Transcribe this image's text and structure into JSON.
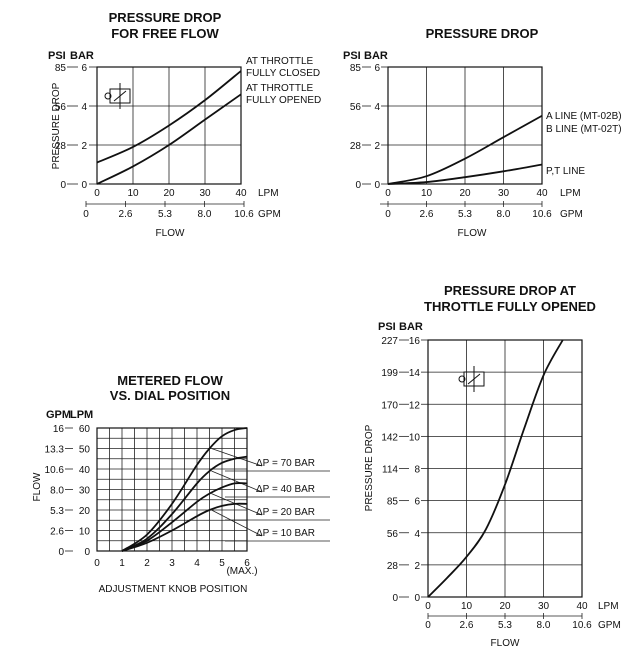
{
  "chart_data": [
    {
      "type": "line",
      "title": [
        "PRESSURE DROP",
        "FOR FREE FLOW"
      ],
      "ylabel": "PRESSURE DROP",
      "y_units": [
        "PSI",
        "BAR"
      ],
      "y_ticks_psi": [
        "85",
        "56",
        "28",
        "0"
      ],
      "y_ticks_bar": [
        "6",
        "4",
        "2",
        "0"
      ],
      "ylim": [
        0,
        6
      ],
      "xlim": [
        0,
        40
      ],
      "x_unit_lpm": "LPM",
      "x_unit_gpm": "GPM",
      "x_ticks_lpm": [
        "0",
        "10",
        "20",
        "30",
        "40"
      ],
      "x_ticks_gpm": [
        "0",
        "2.6",
        "5.3",
        "8.0",
        "10.6"
      ],
      "xlabel": "FLOW",
      "grid": true,
      "series": [
        {
          "name": "AT THROTTLE FULLY CLOSED",
          "label_lines": [
            "AT THROTTLE",
            "FULLY CLOSED"
          ],
          "x": [
            0,
            10,
            20,
            30,
            40
          ],
          "y": [
            1.1,
            1.9,
            3.0,
            4.3,
            5.8
          ]
        },
        {
          "name": "AT THROTTLE FULLY OPENED",
          "label_lines": [
            "AT THROTTLE",
            "FULLY OPENED"
          ],
          "x": [
            0,
            10,
            20,
            30,
            40
          ],
          "y": [
            0.0,
            0.9,
            2.0,
            3.3,
            4.6
          ]
        }
      ]
    },
    {
      "type": "line",
      "title": [
        "PRESSURE DROP"
      ],
      "y_units": [
        "PSI",
        "BAR"
      ],
      "y_ticks_psi": [
        "85",
        "56",
        "28",
        "0"
      ],
      "y_ticks_bar": [
        "6",
        "4",
        "2",
        "0"
      ],
      "ylim": [
        0,
        6
      ],
      "xlim": [
        0,
        40
      ],
      "x_unit_lpm": "LPM",
      "x_unit_gpm": "GPM",
      "x_ticks_lpm": [
        "0",
        "10",
        "20",
        "30",
        "40"
      ],
      "x_ticks_gpm": [
        "0",
        "2.6",
        "5.3",
        "8.0",
        "10.6"
      ],
      "xlabel": "FLOW",
      "grid": true,
      "series": [
        {
          "name": "A LINE (MT-02B) B LINE (MT-02T)",
          "label_lines": [
            "A LINE (MT-02B)",
            "B LINE (MT-02T)"
          ],
          "x": [
            0,
            10,
            20,
            30,
            40
          ],
          "y": [
            0.0,
            0.4,
            1.3,
            2.4,
            3.5
          ]
        },
        {
          "name": "P,T LINE",
          "label_lines": [
            "P,T LINE"
          ],
          "x": [
            0,
            10,
            20,
            30,
            40
          ],
          "y": [
            0.0,
            0.1,
            0.35,
            0.65,
            1.0
          ]
        }
      ]
    },
    {
      "type": "line",
      "title": [
        "METERED FLOW",
        "VS. DIAL POSITION"
      ],
      "ylabel": "FLOW",
      "y_units": [
        "GPM",
        "LPM"
      ],
      "y_ticks_gpm": [
        "16",
        "13.3",
        "10.6",
        "8.0",
        "5.3",
        "2.6",
        "0"
      ],
      "y_ticks_lpm": [
        "60",
        "50",
        "40",
        "30",
        "20",
        "10",
        "0"
      ],
      "ylim": [
        0,
        60
      ],
      "xlim": [
        0,
        6
      ],
      "x_ticks": [
        "0",
        "1",
        "2",
        "3",
        "4",
        "5",
        "6"
      ],
      "x_max_label": "(MAX.)",
      "xlabel": "ADJUSTMENT KNOB POSITION",
      "grid": true,
      "series": [
        {
          "name": "ΔP = 70 BAR",
          "label_lines": [
            "ΔP = 70 BAR"
          ],
          "x": [
            1,
            2,
            3,
            4,
            4.5,
            5,
            5.5,
            6
          ],
          "y": [
            0,
            8,
            23,
            42,
            50,
            56,
            59,
            60
          ]
        },
        {
          "name": "ΔP = 40 BAR",
          "label_lines": [
            "ΔP = 40 BAR"
          ],
          "x": [
            1,
            2,
            3,
            4,
            4.5,
            5,
            5.5,
            6
          ],
          "y": [
            0,
            6,
            18,
            33,
            39,
            43,
            45,
            46
          ]
        },
        {
          "name": "ΔP = 20 BAR",
          "label_lines": [
            "ΔP = 20 BAR"
          ],
          "x": [
            1,
            2,
            3,
            4,
            4.5,
            5,
            5.5,
            6
          ],
          "y": [
            0,
            5,
            14,
            24,
            28,
            31,
            33,
            33
          ]
        },
        {
          "name": "ΔP = 10 BAR",
          "label_lines": [
            "ΔP = 10 BAR"
          ],
          "x": [
            1,
            2,
            3,
            4,
            4.5,
            5,
            5.5,
            6
          ],
          "y": [
            0,
            4,
            10,
            17,
            20,
            22,
            23,
            23
          ]
        }
      ]
    },
    {
      "type": "line",
      "title": [
        "PRESSURE DROP AT",
        "THROTTLE FULLY OPENED"
      ],
      "ylabel": "PRESSURE DROP",
      "y_units": [
        "PSI",
        "BAR"
      ],
      "y_ticks_psi": [
        "227",
        "199",
        "170",
        "142",
        "114",
        "85",
        "56",
        "28",
        "0"
      ],
      "y_ticks_bar": [
        "16",
        "14",
        "12",
        "10",
        "8",
        "6",
        "4",
        "2",
        "0"
      ],
      "ylim": [
        0,
        16
      ],
      "xlim": [
        0,
        40
      ],
      "x_unit_lpm": "LPM",
      "x_unit_gpm": "GPM",
      "x_ticks_lpm": [
        "0",
        "10",
        "20",
        "30",
        "40"
      ],
      "x_ticks_gpm": [
        "0",
        "2.6",
        "5.3",
        "8.0",
        "10.6"
      ],
      "xlabel": "FLOW",
      "grid": true,
      "series": [
        {
          "name": "",
          "x": [
            0,
            5,
            10,
            15,
            20,
            25,
            30,
            35
          ],
          "y": [
            0,
            1.2,
            2.5,
            4.2,
            7.0,
            10.5,
            13.8,
            16.6
          ]
        }
      ]
    }
  ]
}
